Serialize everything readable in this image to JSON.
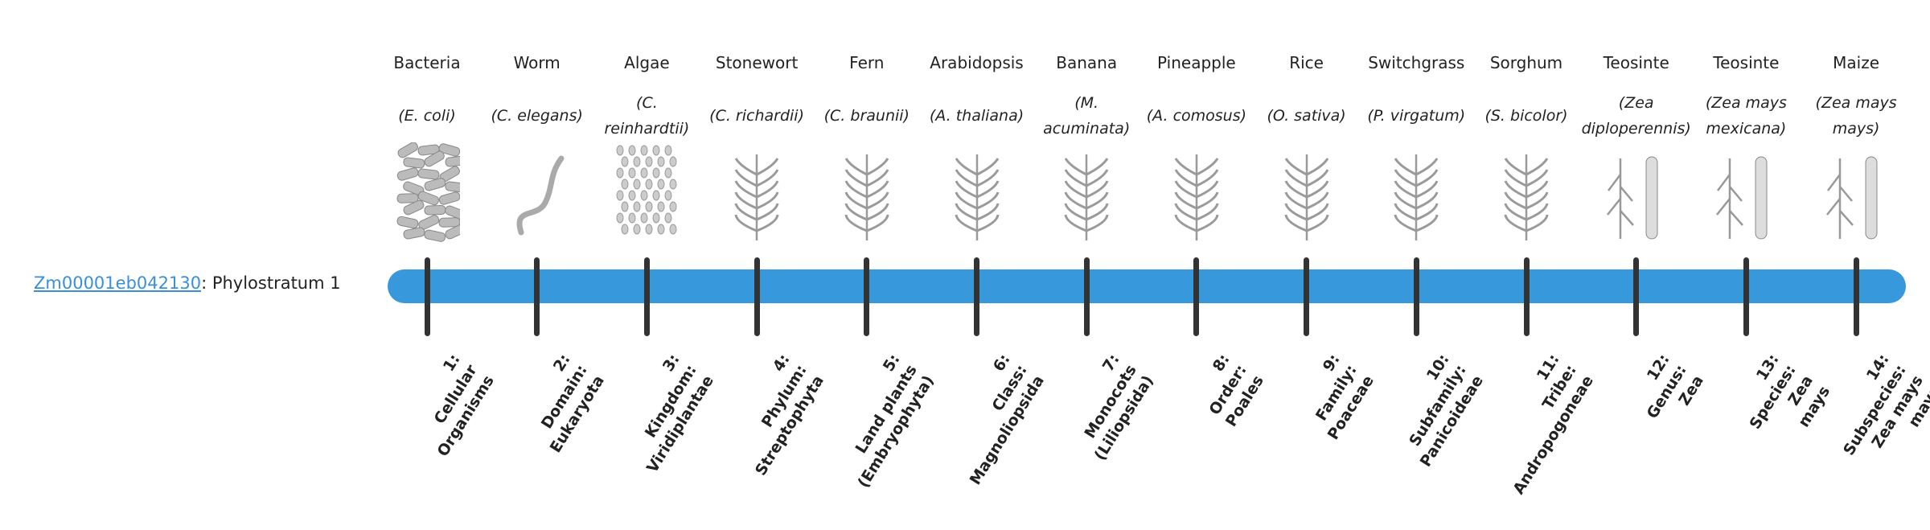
{
  "gene": {
    "id": "Zm00001eb042130",
    "suffix": ": Phylostratum 1"
  },
  "colors": {
    "bar": "#3798db",
    "tick": "#333333",
    "link": "#3a8fd8",
    "illustration": "#9a9a9a"
  },
  "strata": [
    {
      "common": "Bacteria",
      "species": "(E. coli)",
      "icon": "bacteria-illustration",
      "label": [
        "1:",
        "Cellular",
        "Organisms"
      ]
    },
    {
      "common": "Worm",
      "species": "(C. elegans)",
      "icon": "worm-illustration",
      "label": [
        "2:",
        "Domain:",
        "Eukaryota"
      ]
    },
    {
      "common": "Algae",
      "species": "(C. reinhardtii)",
      "icon": "algae-illustration",
      "label": [
        "3:",
        "Kingdom:",
        "Viridiplantae"
      ]
    },
    {
      "common": "Stonewort",
      "species": "(C. richardii)",
      "icon": "stonewort-illustration",
      "label": [
        "4:",
        "Phylum:",
        "Streptophyta"
      ]
    },
    {
      "common": "Fern",
      "species": "(C. braunii)",
      "icon": "fern-illustration",
      "label": [
        "5:",
        "Land plants",
        "(Embryophyta)"
      ]
    },
    {
      "common": "Arabidopsis",
      "species": "(A. thaliana)",
      "icon": "arabidopsis-illustration",
      "label": [
        "6:",
        "Class:",
        "Magnoliopsida"
      ]
    },
    {
      "common": "Banana",
      "species": "(M. acuminata)",
      "icon": "banana-illustration",
      "label": [
        "7:",
        "Monocots",
        "(Liliopsida)"
      ]
    },
    {
      "common": "Pineapple",
      "species": "(A. comosus)",
      "icon": "pineapple-illustration",
      "label": [
        "8:",
        "Order:",
        "Poales"
      ]
    },
    {
      "common": "Rice",
      "species": "(O. sativa)",
      "icon": "rice-illustration",
      "label": [
        "9:",
        "Family:",
        "Poaceae"
      ]
    },
    {
      "common": "Switchgrass",
      "species": "(P. virgatum)",
      "icon": "switchgrass-illustration",
      "label": [
        "10:",
        "Subfamily:",
        "Panicoideae"
      ]
    },
    {
      "common": "Sorghum",
      "species": "(S. bicolor)",
      "icon": "sorghum-illustration",
      "label": [
        "11:",
        "Tribe:",
        "Andropogoneae"
      ]
    },
    {
      "common": "Teosinte",
      "species": "(Zea diploperennis)",
      "icon": "teosinte-illustration",
      "label": [
        "12:",
        "Genus:",
        "Zea"
      ]
    },
    {
      "common": "Teosinte",
      "species": "(Zea mays mexicana)",
      "icon": "teosinte-illustration",
      "label": [
        "13:",
        "Species:",
        "Zea",
        "mays"
      ]
    },
    {
      "common": "Maize",
      "species": "(Zea mays mays)",
      "icon": "maize-illustration",
      "label": [
        "14:",
        "Subspecies:",
        "Zea mays",
        "mays"
      ]
    }
  ]
}
